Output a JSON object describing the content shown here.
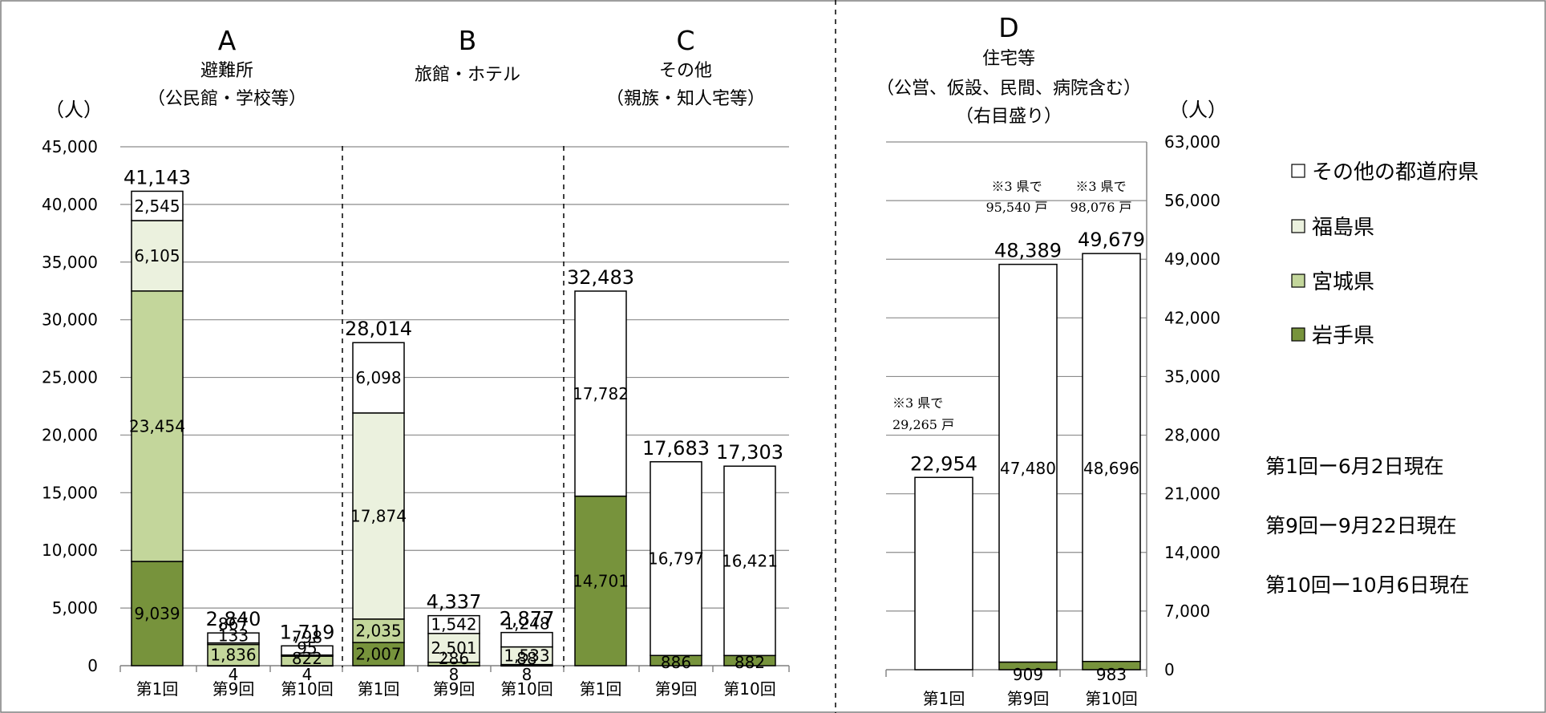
{
  "colors": {
    "その他の都道府県": "#ffffff",
    "福島県": "#ebf1de",
    "宮城県": "#c3d69b",
    "岩手県": "#77933c",
    "outline": "#000000"
  },
  "chart_data": [
    {
      "type": "bar",
      "stacked": true,
      "panel": "A",
      "title": "A",
      "subtitle": [
        "避難所",
        "（公民館・学校等）"
      ],
      "ylabel": "（人）",
      "ylim": [
        0,
        45000
      ],
      "yticks": [
        "0",
        "5,000",
        "10,000",
        "15,000",
        "20,000",
        "25,000",
        "30,000",
        "35,000",
        "40,000",
        "45,000"
      ],
      "categories": [
        "第1回",
        "第9回",
        "第10回"
      ],
      "series": [
        {
          "name": "岩手県",
          "values": [
            9039,
            4,
            4
          ],
          "labels": [
            "9,039",
            "4",
            "4"
          ]
        },
        {
          "name": "宮城県",
          "values": [
            23454,
            1836,
            822
          ],
          "labels": [
            "23,454",
            "1,836",
            "822"
          ]
        },
        {
          "name": "福島県",
          "values": [
            6105,
            133,
            95
          ],
          "labels": [
            "6,105",
            "133",
            "95"
          ]
        },
        {
          "name": "その他の都道府県",
          "values": [
            2545,
            867,
            798
          ],
          "labels": [
            "2,545",
            "867",
            "798"
          ]
        }
      ],
      "totals": [
        "41,143",
        "2,840",
        "1,719"
      ]
    },
    {
      "type": "bar",
      "stacked": true,
      "panel": "B",
      "title": "B",
      "subtitle": [
        "旅館・ホテル"
      ],
      "ylim": [
        0,
        45000
      ],
      "categories": [
        "第1回",
        "第9回",
        "第10回"
      ],
      "series": [
        {
          "name": "岩手県",
          "values": [
            2007,
            8,
            8
          ],
          "labels": [
            "2,007",
            "8",
            "8"
          ]
        },
        {
          "name": "宮城県",
          "values": [
            2035,
            286,
            88
          ],
          "labels": [
            "2,035",
            "286",
            "88"
          ]
        },
        {
          "name": "福島県",
          "values": [
            17874,
            2501,
            1533
          ],
          "labels": [
            "17,874",
            "2,501",
            "1,533"
          ]
        },
        {
          "name": "その他の都道府県",
          "values": [
            6098,
            1542,
            1248
          ],
          "labels": [
            "6,098",
            "1,542",
            "1,248"
          ]
        }
      ],
      "totals": [
        "28,014",
        "4,337",
        "2,877"
      ]
    },
    {
      "type": "bar",
      "stacked": true,
      "panel": "C",
      "title": "C",
      "subtitle": [
        "その他",
        "（親族・知人宅等）"
      ],
      "ylim": [
        0,
        45000
      ],
      "categories": [
        "第1回",
        "第9回",
        "第10回"
      ],
      "series": [
        {
          "name": "岩手県",
          "values": [
            14701,
            886,
            882
          ],
          "labels": [
            "14,701",
            "886",
            "882"
          ]
        },
        {
          "name": "その他の都道府県",
          "values": [
            17782,
            16797,
            16421
          ],
          "labels": [
            "17,782",
            "16,797",
            "16,421"
          ]
        }
      ],
      "totals": [
        "32,483",
        "17,683",
        "17,303"
      ]
    },
    {
      "type": "bar",
      "stacked": true,
      "panel": "D",
      "title": "D",
      "subtitle": [
        "住宅等",
        "（公営、仮設、民間、病院含む）",
        "（右目盛り）"
      ],
      "ylabel": "（人）",
      "ylim": [
        0,
        63000
      ],
      "yticks": [
        "0",
        "7,000",
        "14,000",
        "21,000",
        "28,000",
        "35,000",
        "42,000",
        "49,000",
        "56,000",
        "63,000"
      ],
      "categories": [
        "第1回",
        "第9回",
        "第10回"
      ],
      "series": [
        {
          "name": "岩手県",
          "values": [
            0,
            909,
            983
          ],
          "labels": [
            "",
            "909",
            "983"
          ]
        },
        {
          "name": "その他の都道府県",
          "values": [
            22954,
            47480,
            48696
          ],
          "labels": [
            "",
            "47,480",
            "48,696"
          ]
        }
      ],
      "totals": [
        "22,954",
        "48,389",
        "49,679"
      ],
      "notes": [
        [
          "※3 県で",
          "29,265 戸"
        ],
        [
          "※3 県で",
          "95,540 戸"
        ],
        [
          "※3 県で",
          "98,076 戸"
        ]
      ]
    }
  ],
  "legend": [
    "その他の都道府県",
    "福島県",
    "宮城県",
    "岩手県"
  ],
  "dates": [
    "第1回ー6月2日現在",
    "第9回ー9月22日現在",
    "第10回ー10月6日現在"
  ]
}
